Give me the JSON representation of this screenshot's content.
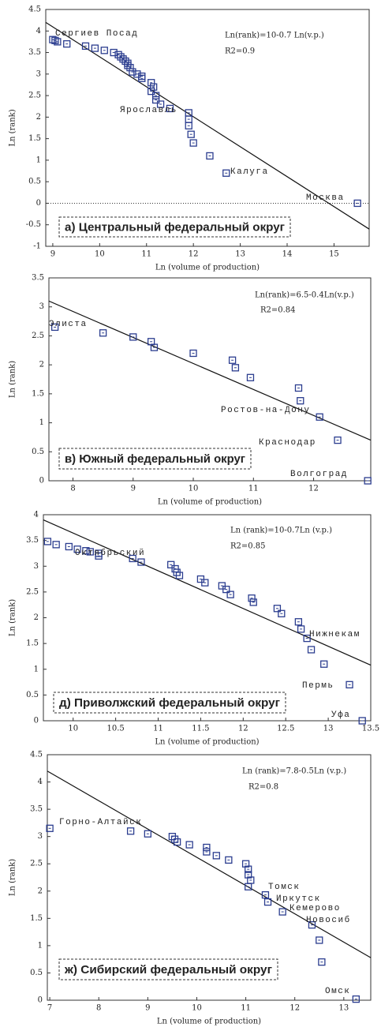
{
  "chart_data": [
    {
      "type": "scatter",
      "equation": "Ln(rank)=10-0.7 Ln(v.p.)",
      "r2": "R2=0.9",
      "panel_label": "а) Центральный федеральный округ",
      "x_label": "Ln (volume of production)",
      "y_label": "Ln (rank)",
      "color": "#2b3d8f",
      "reference_line": 0,
      "x": [
        9.0,
        9.05,
        9.1,
        9.3,
        9.7,
        9.9,
        10.1,
        10.3,
        10.4,
        10.45,
        10.5,
        10.55,
        10.6,
        10.6,
        10.65,
        10.7,
        10.8,
        10.9,
        10.9,
        11.1,
        11.15,
        11.1,
        11.2,
        11.2,
        11.3,
        11.5,
        11.9,
        11.9,
        11.9,
        11.95,
        12.0,
        12.35,
        12.7,
        15.5
      ],
      "values": [
        3.8,
        3.78,
        3.75,
        3.7,
        3.65,
        3.6,
        3.55,
        3.5,
        3.45,
        3.4,
        3.35,
        3.3,
        3.25,
        3.2,
        3.15,
        3.05,
        3.0,
        2.95,
        2.9,
        2.8,
        2.7,
        2.6,
        2.5,
        2.4,
        2.3,
        2.2,
        2.1,
        1.95,
        1.8,
        1.6,
        1.4,
        1.1,
        0.7,
        0
      ],
      "fit": {
        "x": [
          8.85,
          15.75
        ],
        "values": [
          4.2,
          -0.6
        ]
      },
      "annotations": [
        "Сергиев Посад",
        "Ярославль",
        "Калуга",
        "Москва"
      ],
      "xlim": [
        8.85,
        15.75
      ],
      "ylim": [
        -1,
        4.5
      ],
      "xticks": [
        9,
        10,
        11,
        12,
        13,
        14,
        15
      ],
      "yticks": [
        -1,
        -0.5,
        0,
        0.5,
        1,
        1.5,
        2,
        2.5,
        3,
        3.5,
        4,
        4.5
      ]
    },
    {
      "type": "scatter",
      "equation": "Ln(rank)=6.5-0.4Ln(v.p.)",
      "r2": "R2=0.84",
      "panel_label": "в) Южный федеральный округ",
      "x_label": "Ln (volume of production)",
      "y_label": "Ln (rank)",
      "color": "#2b3d8f",
      "x": [
        7.7,
        8.5,
        9.0,
        9.3,
        9.35,
        10.0,
        10.65,
        10.7,
        10.95,
        11.75,
        11.78,
        12.1,
        12.4,
        12.9
      ],
      "values": [
        2.65,
        2.55,
        2.48,
        2.4,
        2.3,
        2.2,
        2.08,
        1.95,
        1.78,
        1.6,
        1.38,
        1.1,
        0.7,
        0
      ],
      "fit": {
        "x": [
          7.6,
          12.95
        ],
        "values": [
          3.1,
          0.7
        ]
      },
      "annotations": [
        "Элиста",
        "Ростов-на-Дону",
        "Краснодар",
        "Волгоград"
      ],
      "xlim": [
        7.6,
        12.95
      ],
      "ylim": [
        0,
        3.5
      ],
      "xticks": [
        8,
        9,
        10,
        11,
        12
      ],
      "yticks": [
        0,
        0.5,
        1,
        1.5,
        2,
        2.5,
        3,
        3.5
      ]
    },
    {
      "type": "scatter",
      "equation": "Ln (rank)=10-0.7Ln (v.p.)",
      "r2": "R2=0.85",
      "panel_label": "д) Приволжский федеральный округ",
      "x_label": "Ln (volume of production)",
      "y_label": "Ln (rank)",
      "color": "#2b3d8f",
      "x": [
        9.7,
        9.8,
        9.95,
        10.05,
        10.15,
        10.2,
        10.3,
        10.3,
        10.7,
        10.8,
        11.15,
        11.2,
        11.22,
        11.25,
        11.5,
        11.55,
        11.75,
        11.8,
        11.85,
        12.1,
        12.12,
        12.4,
        12.45,
        12.65,
        12.68,
        12.75,
        12.8,
        12.95,
        13.25,
        13.4
      ],
      "values": [
        3.48,
        3.42,
        3.38,
        3.33,
        3.3,
        3.28,
        3.25,
        3.2,
        3.15,
        3.08,
        3.03,
        2.95,
        2.88,
        2.82,
        2.75,
        2.68,
        2.62,
        2.55,
        2.45,
        2.38,
        2.3,
        2.18,
        2.08,
        1.92,
        1.78,
        1.6,
        1.38,
        1.1,
        0.7,
        0
      ],
      "fit": {
        "x": [
          9.65,
          13.5
        ],
        "values": [
          3.9,
          1.08
        ]
      },
      "annotations": [
        "Октябрьский",
        "Нижнекам",
        "Пермь",
        "Уфа"
      ],
      "xlim": [
        9.65,
        13.5
      ],
      "ylim": [
        0,
        4
      ],
      "xticks": [
        10,
        10.5,
        11,
        11.5,
        12,
        12.5,
        13,
        13.5
      ],
      "yticks": [
        0,
        0.5,
        1,
        1.5,
        2,
        2.5,
        3,
        3.5,
        4
      ]
    },
    {
      "type": "scatter",
      "equation": "Ln (rank)=7.8-0.5Ln (v.p.)",
      "r2": "R2=0.8",
      "panel_label": "ж) Сибирский федеральный округ",
      "x_label": "Ln (volume of production)",
      "y_label": "Ln (rank)",
      "color": "#2b3d8f",
      "x": [
        7.0,
        8.65,
        9.0,
        9.5,
        9.55,
        9.6,
        9.85,
        10.2,
        10.2,
        10.4,
        10.65,
        11.0,
        11.05,
        11.05,
        11.1,
        11.05,
        11.4,
        11.45,
        11.75,
        12.35,
        12.5,
        12.55,
        13.25
      ],
      "values": [
        3.15,
        3.1,
        3.05,
        3.0,
        2.95,
        2.9,
        2.85,
        2.8,
        2.72,
        2.65,
        2.57,
        2.5,
        2.4,
        2.3,
        2.2,
        2.08,
        1.93,
        1.8,
        1.62,
        1.38,
        1.1,
        0.7,
        0.02
      ],
      "fit": {
        "x": [
          6.95,
          13.55
        ],
        "values": [
          4.2,
          0.78
        ]
      },
      "annotations": [
        "Горно-Алтайск",
        "Томск",
        "Иркутск",
        "Кемерово",
        "Новосиб",
        "Омск"
      ],
      "xlim": [
        6.95,
        13.55
      ],
      "ylim": [
        0,
        4.5
      ],
      "xticks": [
        7,
        8,
        9,
        10,
        11,
        12,
        13
      ],
      "yticks": [
        0,
        0.5,
        1,
        1.5,
        2,
        2.5,
        3,
        3.5,
        4,
        4.5
      ]
    }
  ]
}
